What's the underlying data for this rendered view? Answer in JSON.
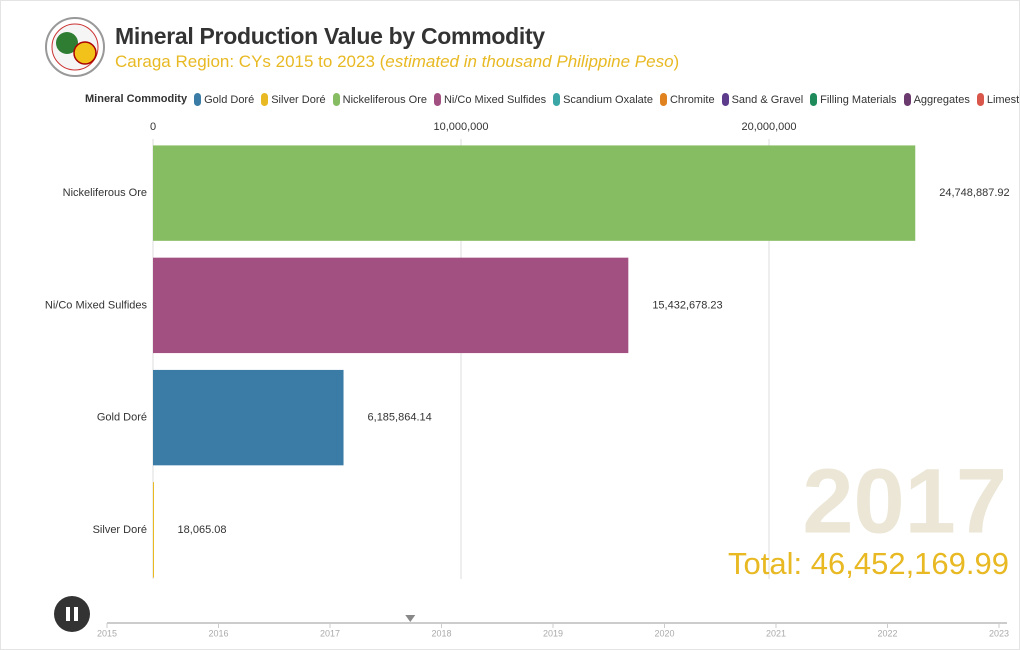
{
  "chart_data": {
    "type": "bar",
    "orientation": "horizontal",
    "title": "Mineral Production Value by Commodity",
    "subtitle": [
      "Caraga Region: CYs 2015 to 2023 (",
      "estimated in thousand Philippine Peso",
      ")"
    ],
    "legend_title": "Mineral Commodity",
    "legend": [
      {
        "name": "Gold Doré",
        "color": "#3a7ca5"
      },
      {
        "name": "Silver Doré",
        "color": "#e8b923"
      },
      {
        "name": "Nickeliferous Ore",
        "color": "#86bc62"
      },
      {
        "name": "Ni/Co Mixed Sulfides",
        "color": "#a25081"
      },
      {
        "name": "Scandium Oxalate",
        "color": "#3aa6a6"
      },
      {
        "name": "Chromite",
        "color": "#e0821e"
      },
      {
        "name": "Sand & Gravel",
        "color": "#5e3c8c"
      },
      {
        "name": "Filling Materials",
        "color": "#1f8a5a"
      },
      {
        "name": "Aggregates",
        "color": "#6b3a6e"
      },
      {
        "name": "Limestone",
        "color": "#d9574a"
      }
    ],
    "categories": [
      "Nickeliferous Ore",
      "Ni/Co Mixed Sulfides",
      "Gold Doré",
      "Silver Doré"
    ],
    "values": [
      24748887.92,
      15432678.23,
      6185864.14,
      18065.08
    ],
    "value_labels": [
      "24,748,887.92",
      "15,432,678.23",
      "6,185,864.14",
      "18,065.08"
    ],
    "colors": [
      "#86bc62",
      "#a25081",
      "#3a7ca5",
      "#e8b923"
    ],
    "xlim": [
      0,
      27000000
    ],
    "xticks": [
      0,
      {
        "value": 10000000,
        "label": "10,000,000"
      },
      {
        "value": 20000000,
        "label": "20,000,000"
      }
    ],
    "grid": true,
    "year": "2017",
    "total": {
      "value": 46452169.99,
      "label": "Total: 46,452,169.99"
    },
    "timeline": {
      "ticks": [
        2015,
        2016,
        2017,
        2018,
        2019,
        2020,
        2021,
        2022,
        2023
      ],
      "current": 2017.72
    }
  }
}
